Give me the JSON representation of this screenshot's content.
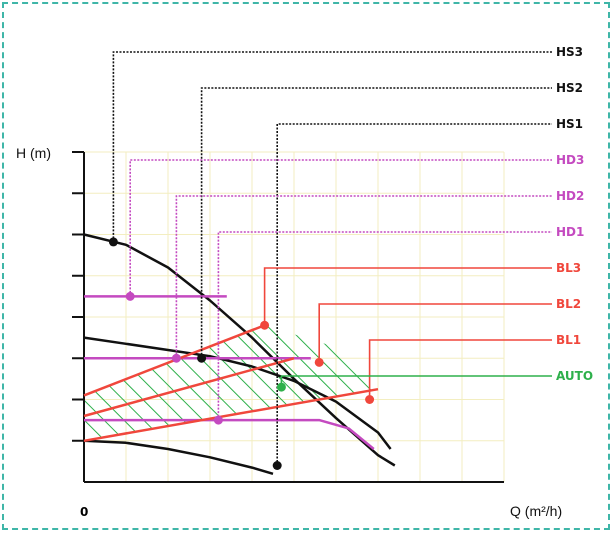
{
  "chart_data": {
    "type": "line",
    "title": "",
    "xlabel": "Q (m²/h)",
    "ylabel": "H (m)",
    "x_tick_labels": [
      "0"
    ],
    "xlim": [
      0,
      10
    ],
    "ylim": [
      0,
      8
    ],
    "grid": true,
    "colors": {
      "black": "#111111",
      "magenta": "#c44ac0",
      "red": "#f0473c",
      "green": "#2eb04b",
      "hatch": "#2eb04b",
      "grid": "#f3eec0"
    },
    "series": [
      {
        "name": "HS3",
        "color": "#111111",
        "points": [
          [
            0,
            6.0
          ],
          [
            1,
            5.75
          ],
          [
            2,
            5.2
          ],
          [
            3,
            4.4
          ],
          [
            4,
            3.5
          ],
          [
            5,
            2.5
          ],
          [
            6,
            1.55
          ],
          [
            7,
            0.65
          ],
          [
            7.4,
            0.4
          ]
        ]
      },
      {
        "name": "HS2",
        "color": "#111111",
        "points": [
          [
            0,
            3.5
          ],
          [
            1,
            3.35
          ],
          [
            2,
            3.2
          ],
          [
            3,
            3.05
          ],
          [
            4,
            2.8
          ],
          [
            5,
            2.45
          ],
          [
            6,
            1.95
          ],
          [
            7,
            1.2
          ],
          [
            7.3,
            0.8
          ]
        ]
      },
      {
        "name": "HS1",
        "color": "#111111",
        "points": [
          [
            0,
            1.0
          ],
          [
            1,
            0.95
          ],
          [
            2,
            0.8
          ],
          [
            3,
            0.6
          ],
          [
            4,
            0.35
          ],
          [
            4.5,
            0.2
          ]
        ]
      },
      {
        "name": "HD3",
        "color": "#c44ac0",
        "points": [
          [
            0,
            4.5
          ],
          [
            3.4,
            4.5
          ]
        ]
      },
      {
        "name": "HD2",
        "color": "#c44ac0",
        "points": [
          [
            0,
            3.0
          ],
          [
            5.4,
            3.0
          ]
        ]
      },
      {
        "name": "HD1",
        "color": "#c44ac0",
        "points": [
          [
            0,
            1.5
          ],
          [
            5.6,
            1.5
          ],
          [
            6.3,
            1.3
          ],
          [
            6.9,
            0.8
          ]
        ]
      },
      {
        "name": "BL3",
        "color": "#f0473c",
        "points": [
          [
            0,
            2.1
          ],
          [
            4.3,
            3.8
          ]
        ]
      },
      {
        "name": "BL2",
        "color": "#f0473c",
        "points": [
          [
            0,
            1.6
          ],
          [
            5.0,
            3.0
          ]
        ]
      },
      {
        "name": "BL1",
        "color": "#f0473c",
        "points": [
          [
            0,
            1.0
          ],
          [
            7.0,
            2.25
          ]
        ]
      },
      {
        "name": "AUTO",
        "color": "#2eb04b",
        "points": []
      }
    ],
    "marker_points": [
      {
        "series": "HS3",
        "x": 0.7,
        "y": 5.82,
        "color": "#111111"
      },
      {
        "series": "HS2",
        "x": 2.8,
        "y": 3.0,
        "color": "#111111"
      },
      {
        "series": "HS1",
        "x": 4.6,
        "y": 0.4,
        "color": "#111111"
      },
      {
        "series": "HD3",
        "x": 1.1,
        "y": 4.5,
        "color": "#c44ac0"
      },
      {
        "series": "HD2",
        "x": 2.2,
        "y": 3.0,
        "color": "#c44ac0"
      },
      {
        "series": "HD1",
        "x": 3.2,
        "y": 1.5,
        "color": "#c44ac0"
      },
      {
        "series": "BL3",
        "x": 4.3,
        "y": 3.8,
        "color": "#f0473c"
      },
      {
        "series": "BL2",
        "x": 5.6,
        "y": 2.9,
        "color": "#f0473c"
      },
      {
        "series": "BL1",
        "x": 6.8,
        "y": 2.0,
        "color": "#f0473c"
      },
      {
        "series": "AUTO",
        "x": 4.7,
        "y": 2.3,
        "color": "#2eb04b"
      }
    ],
    "auto_region": [
      [
        0,
        1.0
      ],
      [
        0,
        2.1
      ],
      [
        4.3,
        3.8
      ],
      [
        5.9,
        3.3
      ],
      [
        7.0,
        2.25
      ]
    ],
    "legend_labels": [
      {
        "name": "HS3",
        "color": "#111111",
        "anchor_series": "HS3",
        "anchor_x": 0.7
      },
      {
        "name": "HS2",
        "color": "#111111",
        "anchor_series": "HS2",
        "anchor_x": 2.8
      },
      {
        "name": "HS1",
        "color": "#111111",
        "anchor_series": "HS1",
        "anchor_x": 4.6
      },
      {
        "name": "HD3",
        "color": "#c44ac0",
        "anchor_series": "HD3",
        "anchor_x": 1.1
      },
      {
        "name": "HD2",
        "color": "#c44ac0",
        "anchor_series": "HD2",
        "anchor_x": 2.2
      },
      {
        "name": "HD1",
        "color": "#c44ac0",
        "anchor_series": "HD1",
        "anchor_x": 3.2
      },
      {
        "name": "BL3",
        "color": "#f0473c",
        "anchor_series": "BL3",
        "anchor_x": 4.3
      },
      {
        "name": "BL2",
        "color": "#f0473c",
        "anchor_series": "BL2",
        "anchor_x": 5.6
      },
      {
        "name": "BL1",
        "color": "#f0473c",
        "anchor_series": "BL1",
        "anchor_x": 6.8
      },
      {
        "name": "AUTO",
        "color": "#2eb04b",
        "anchor_series": "AUTO",
        "anchor_x": 4.7
      }
    ]
  }
}
